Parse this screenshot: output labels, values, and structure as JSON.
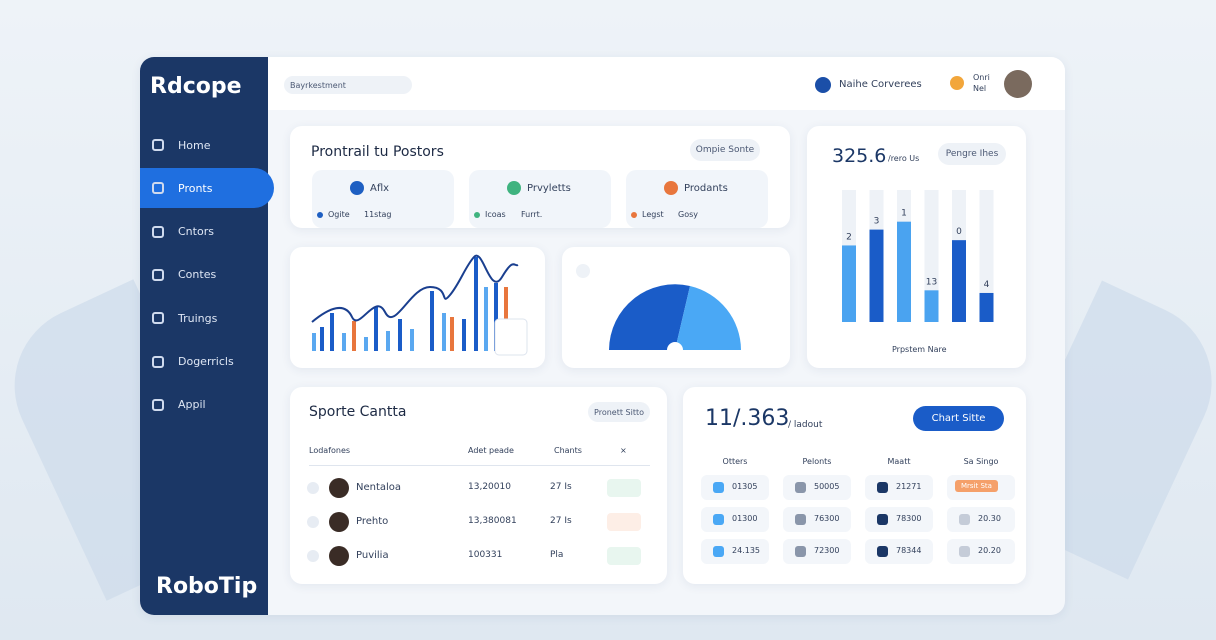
{
  "sidebar": {
    "logo": "Rdcope",
    "items": [
      "Home",
      "Pronts",
      "Cntors",
      "Contes",
      "Truings",
      "Dogerricls",
      "Appil"
    ],
    "active": 1,
    "brand": "RoboTip"
  },
  "topbar": {
    "search": "Bayrkestment",
    "notification": "Naihe Corverees",
    "user": [
      "Onri",
      "Nel"
    ]
  },
  "overview": {
    "title": "Prontrail tu Postors",
    "button": "Ompie Sonte",
    "cards": [
      {
        "title": "Aflx",
        "note": "Ogite",
        "detail": "11stag",
        "color": "#1e5fc2"
      },
      {
        "title": "Prvyletts",
        "note": "Icoas",
        "detail": "Furrt.",
        "color": "#3fb37f"
      },
      {
        "title": "Prodants",
        "note": "Legst",
        "detail": "Gosy",
        "color": "#e8763d"
      }
    ]
  },
  "bar_panel": {
    "value": "325.6",
    "unit": "/rero Us",
    "button": "Pengre Ihes",
    "caption": "Prpstem Nare",
    "bars": [
      {
        "label": "2",
        "value": 58,
        "color": "#4aa3f0"
      },
      {
        "label": "3",
        "value": 70,
        "color": "#1a5cc8"
      },
      {
        "label": "1",
        "value": 76,
        "color": "#4aa3f0"
      },
      {
        "label": "13",
        "value": 24,
        "color": "#4aa3f0"
      },
      {
        "label": "0",
        "value": 62,
        "color": "#1a5cc8"
      },
      {
        "label": "4",
        "value": 22,
        "color": "#1a5cc8"
      }
    ]
  },
  "table": {
    "title": "Sporte Cantta",
    "button": "Pronett Sitto",
    "headers": [
      "Lodafones",
      "Adet peade",
      "Chants",
      "×"
    ],
    "rows": [
      [
        "Nentaloa",
        "13,20010",
        "27 Is"
      ],
      [
        "Prehto",
        "13,380081",
        "27 Is"
      ],
      [
        "Puvilia",
        "100331",
        "Pla"
      ]
    ]
  },
  "stats": {
    "value": "11/.363",
    "unit": "/ ladout",
    "button": "Chart Sitte",
    "headers": [
      "Otters",
      "Pelonts",
      "Maatt",
      "Sa Singo"
    ],
    "rows": [
      [
        "01305",
        "50005",
        "21271",
        "Mrsit Sta"
      ],
      [
        "01300",
        "76300",
        "78300",
        "20.30"
      ],
      [
        "24.135",
        "72300",
        "78344",
        "20.20"
      ]
    ]
  }
}
